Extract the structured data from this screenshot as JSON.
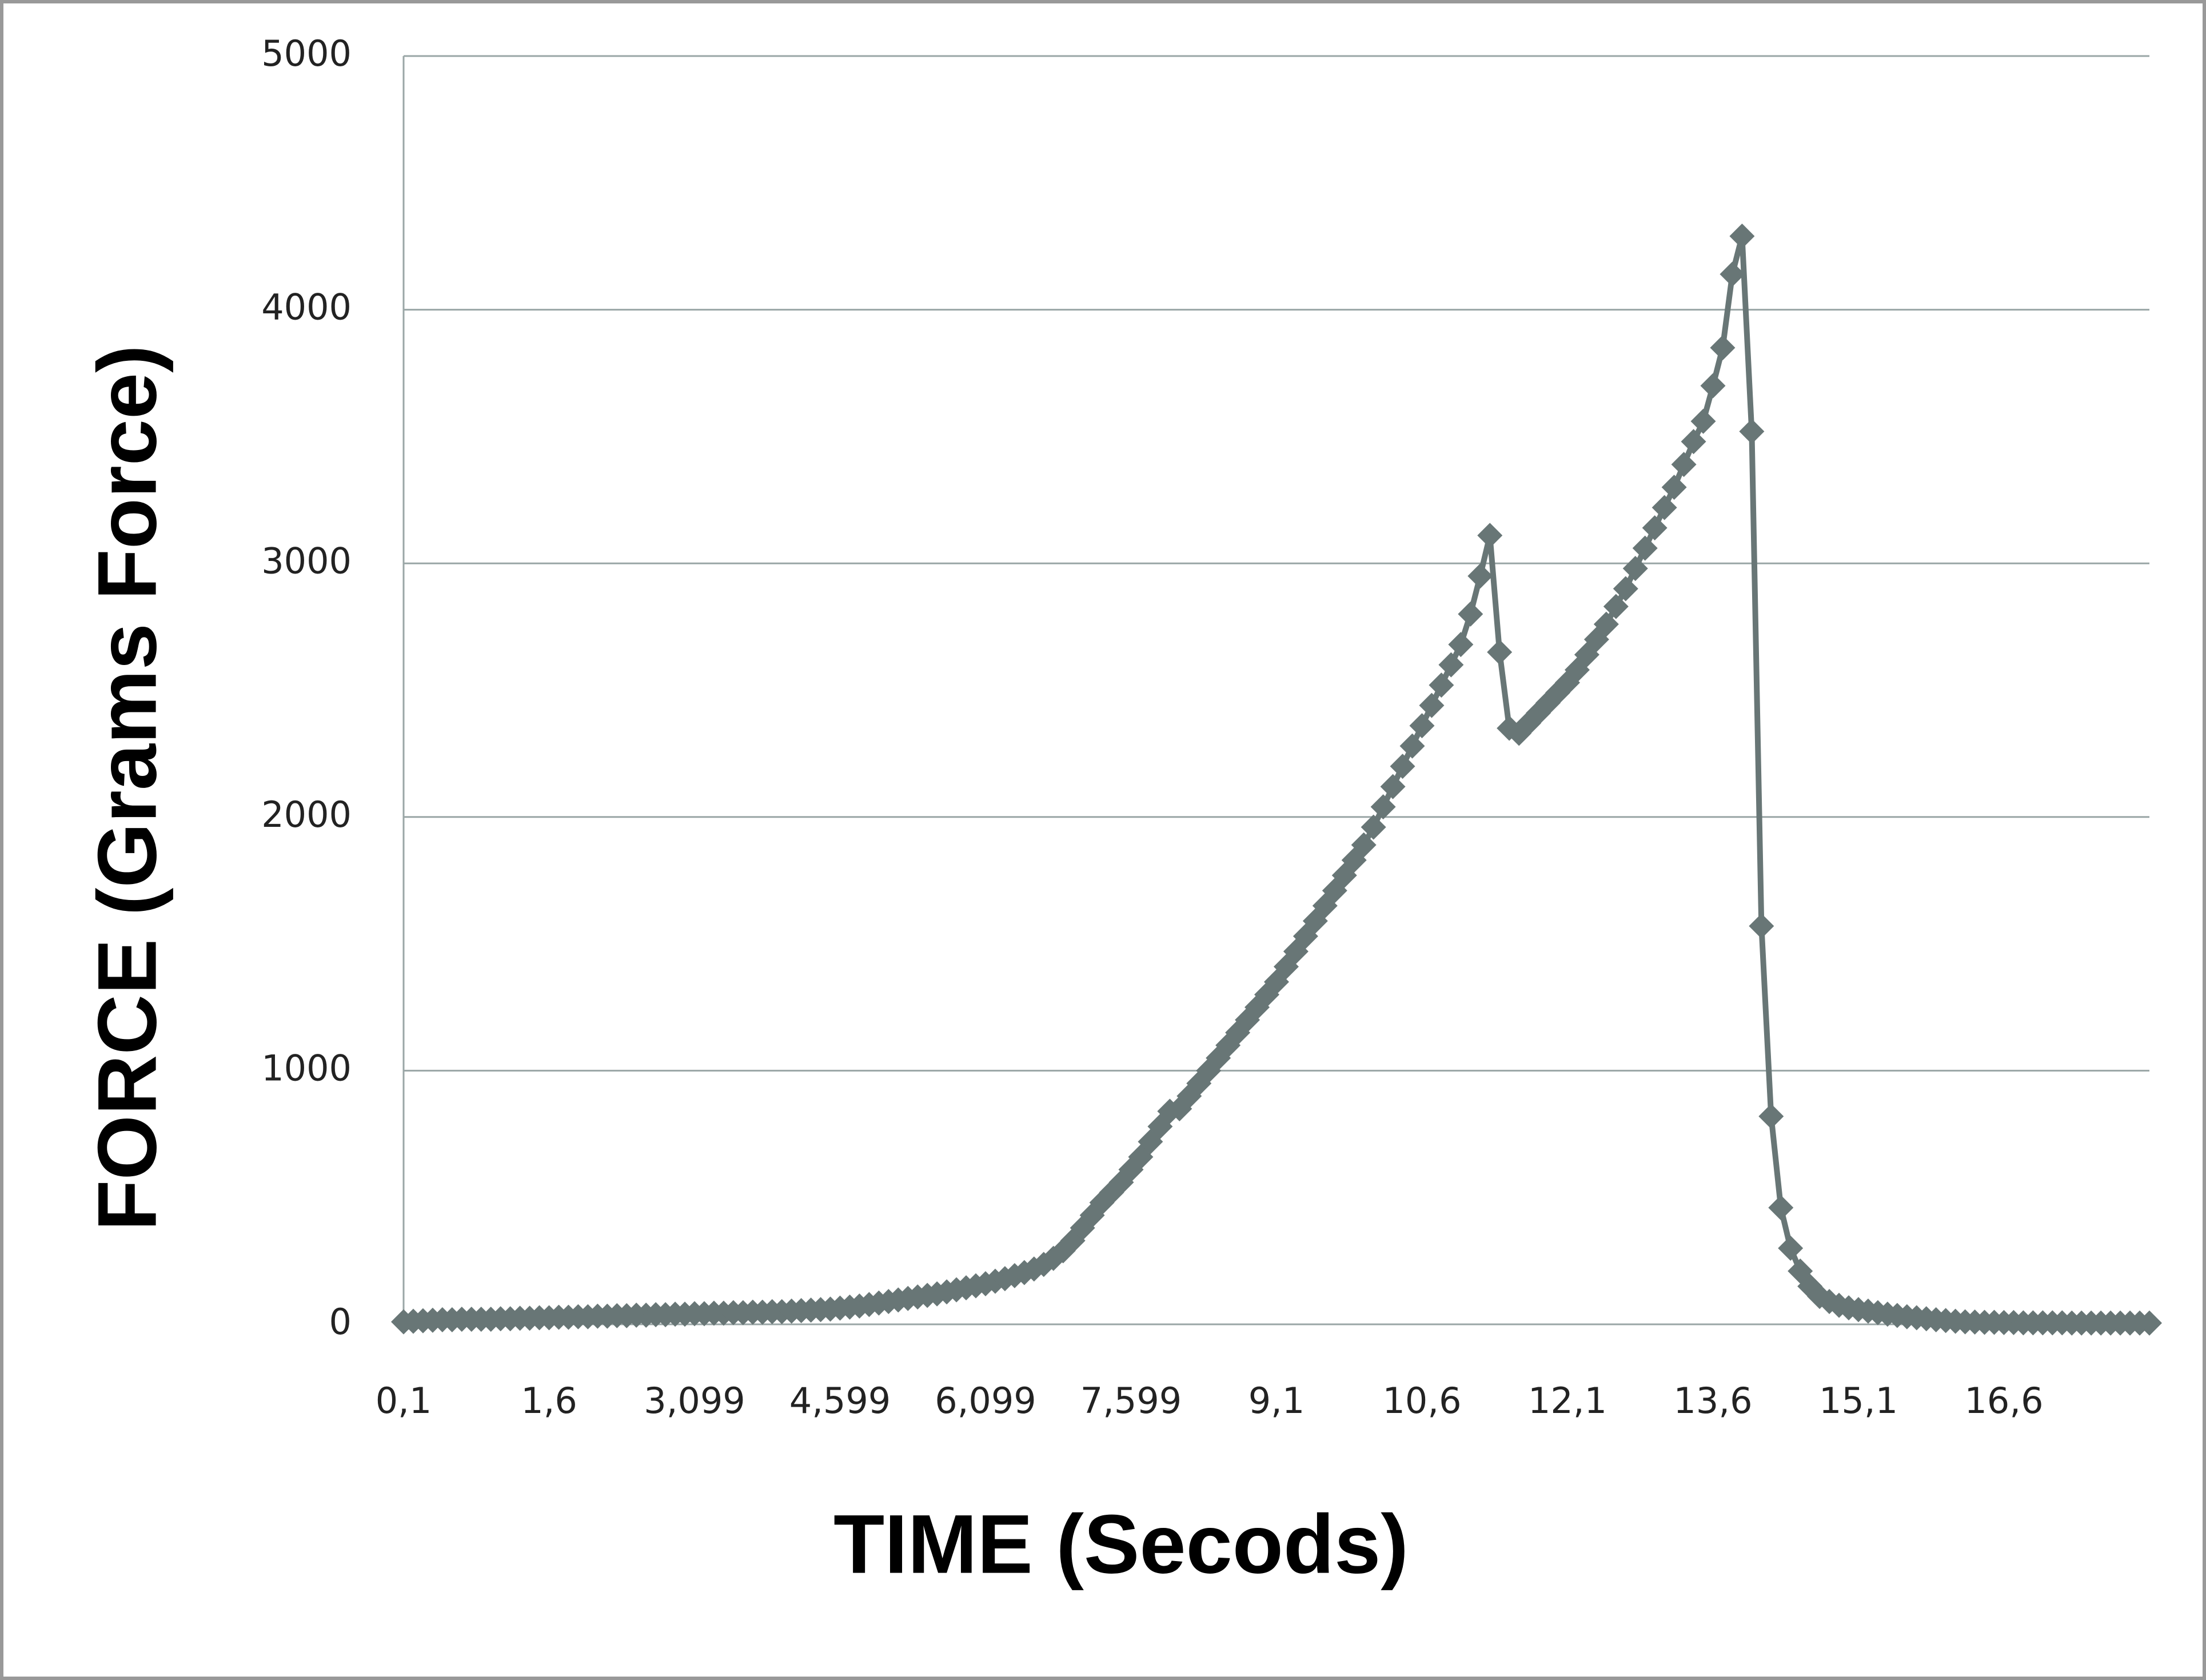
{
  "chart_data": {
    "type": "line",
    "x_label": "TIME (Secods)",
    "y_label": "FORCE (Grams Force)",
    "categories": [
      "0,1",
      null,
      null,
      null,
      null,
      null,
      null,
      null,
      null,
      null,
      null,
      null,
      null,
      null,
      null,
      "1,6",
      null,
      null,
      null,
      null,
      null,
      null,
      null,
      null,
      null,
      null,
      null,
      null,
      null,
      null,
      "3,099",
      null,
      null,
      null,
      null,
      null,
      null,
      null,
      null,
      null,
      null,
      null,
      null,
      null,
      null,
      "4,599",
      null,
      null,
      null,
      null,
      null,
      null,
      null,
      null,
      null,
      null,
      null,
      null,
      null,
      null,
      "6,099",
      null,
      null,
      null,
      null,
      null,
      null,
      null,
      null,
      null,
      null,
      null,
      null,
      null,
      null,
      "7,599",
      null,
      null,
      null,
      null,
      null,
      null,
      null,
      null,
      null,
      null,
      null,
      null,
      null,
      null,
      "9,1",
      null,
      null,
      null,
      null,
      null,
      null,
      null,
      null,
      null,
      null,
      null,
      null,
      null,
      null,
      "10,6",
      null,
      null,
      null,
      null,
      null,
      null,
      null,
      null,
      null,
      null,
      null,
      null,
      null,
      null,
      "12,1",
      null,
      null,
      null,
      null,
      null,
      null,
      null,
      null,
      null,
      null,
      null,
      null,
      null,
      null,
      "13,6",
      null,
      null,
      null,
      null,
      null,
      null,
      null,
      null,
      null,
      null,
      null,
      null,
      null,
      null,
      "15,1",
      null,
      null,
      null,
      null,
      null,
      null,
      null,
      null,
      null,
      null,
      null,
      null,
      null,
      null,
      "16,6",
      null,
      null,
      null,
      null,
      null,
      null,
      null,
      null,
      null,
      null,
      null,
      null,
      null,
      null,
      null
    ],
    "series": [
      {
        "color": "#687676",
        "values": [
          10,
          12,
          14,
          16,
          18,
          18,
          20,
          20,
          20,
          20,
          22,
          22,
          24,
          24,
          26,
          26,
          28,
          28,
          30,
          30,
          32,
          32,
          34,
          34,
          36,
          36,
          38,
          38,
          40,
          40,
          42,
          42,
          44,
          44,
          46,
          46,
          48,
          48,
          50,
          50,
          52,
          54,
          56,
          58,
          60,
          64,
          68,
          72,
          78,
          84,
          90,
          96,
          102,
          108,
          114,
          120,
          128,
          136,
          144,
          152,
          160,
          170,
          180,
          192,
          204,
          218,
          236,
          260,
          290,
          330,
          380,
          430,
          480,
          520,
          560,
          610,
          660,
          720,
          780,
          840,
          850,
          900,
          950,
          1000,
          1050,
          1100,
          1150,
          1200,
          1250,
          1300,
          1350,
          1410,
          1470,
          1530,
          1590,
          1650,
          1710,
          1770,
          1830,
          1890,
          1960,
          2040,
          2120,
          2200,
          2280,
          2360,
          2440,
          2520,
          2600,
          2680,
          2800,
          2950,
          3110,
          2650,
          2350,
          2330,
          2370,
          2410,
          2450,
          2490,
          2530,
          2580,
          2640,
          2700,
          2760,
          2830,
          2900,
          2980,
          3060,
          3140,
          3220,
          3300,
          3390,
          3480,
          3560,
          3700,
          3850,
          4140,
          4290,
          3520,
          1570,
          820,
          460,
          300,
          210,
          150,
          110,
          90,
          75,
          65,
          58,
          52,
          46,
          40,
          35,
          30,
          26,
          22,
          18,
          15,
          12,
          10,
          9,
          8,
          8,
          7,
          7,
          6,
          6,
          6,
          6,
          6,
          5,
          5,
          5,
          5,
          5,
          5,
          5,
          5,
          5
        ]
      }
    ],
    "ylim": [
      0,
      5000
    ],
    "yticks": [
      0,
      1000,
      2000,
      3000,
      4000,
      5000
    ],
    "grid": true
  }
}
